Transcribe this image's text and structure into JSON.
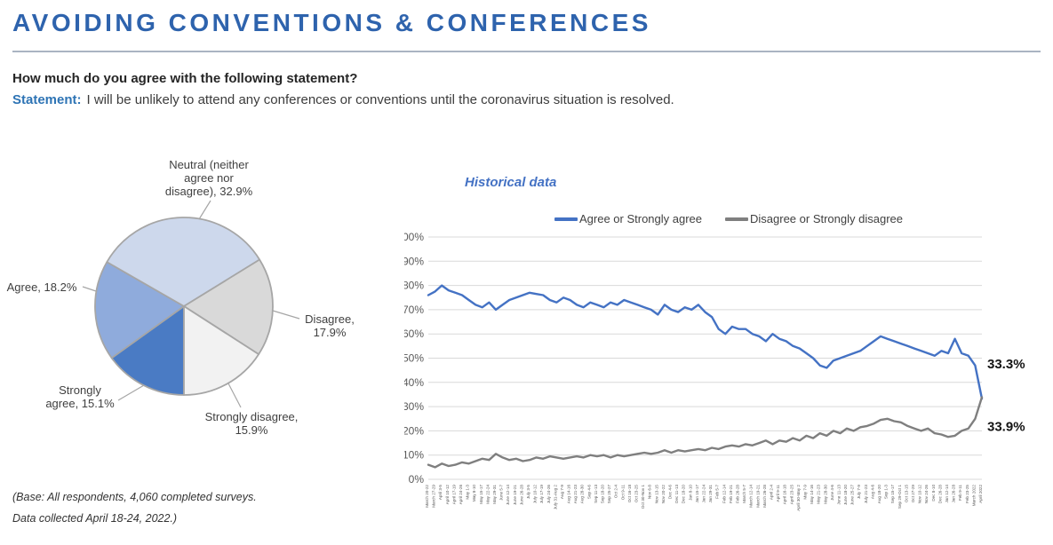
{
  "page": {
    "title": "AVOIDING CONVENTIONS & CONFERENCES",
    "question": "How much do you agree with the following statement?",
    "statement_label": "Statement:",
    "statement_text": "I will be unlikely to attend any conferences or conventions until the coronavirus situation is resolved.",
    "footnote_line1": "(Base: All respondents, 4,060 completed surveys.",
    "footnote_line2": "Data collected April 18-24, 2022.)"
  },
  "colors": {
    "title_blue": "#2e63ad",
    "statement_blue": "#2e74b5",
    "agree_line": "#4472c4",
    "disagree_line": "#7f7f7f",
    "grid_gray": "#d9d9d9",
    "axis_text": "#595959",
    "pie_stroke": "#a6a6a6"
  },
  "chart_data": [
    {
      "type": "pie",
      "title": "",
      "labels": [
        "Strongly agree",
        "Agree",
        "Neutral (neither agree nor disagree)",
        "Disagree",
        "Strongly disagree"
      ],
      "values": [
        15.1,
        18.2,
        32.9,
        17.9,
        15.9
      ],
      "colors": [
        "#4a7bc4",
        "#8fabdc",
        "#cdd8ec",
        "#d9d9d9",
        "#f2f2f2"
      ],
      "start_angle": 180,
      "callouts": [
        {
          "text": "Neutral (neither\nagree nor\ndisagree), 32.9%"
        },
        {
          "text": "Agree, 18.2%"
        },
        {
          "text": "Disagree,\n17.9%"
        },
        {
          "text": "Strongly\nagree, 15.1%"
        },
        {
          "text": "Strongly disagree,\n15.9%"
        }
      ]
    },
    {
      "type": "line",
      "title": "Historical data",
      "ylim": [
        0,
        100
      ],
      "yticks": [
        "0%",
        "10%",
        "20%",
        "30%",
        "40%",
        "50%",
        "60%",
        "70%",
        "80%",
        "90%",
        "100%"
      ],
      "grid": true,
      "legend_position": "top",
      "end_labels": [
        "33.3%",
        "33.9%"
      ],
      "categories": [
        "March 20-22",
        "March 27-29",
        "April 3-5",
        "April 10-12",
        "April 17-19",
        "April 24-26",
        "May 1-3",
        "May 8-10",
        "May 15-17",
        "May 22-24",
        "May 29-31",
        "June 5-7",
        "June 12-14",
        "June 19-21",
        "June 26-28",
        "July 3-5",
        "July 10-12",
        "July 17-19",
        "July 24-26",
        "July 31-Aug 2",
        "Aug 7-9",
        "Aug 14-16",
        "Aug 21-23",
        "Aug 28-30",
        "Sep 4-6",
        "Sep 11-13",
        "Sep 18-20",
        "Sep 25-27",
        "Oct 2-4",
        "Oct 9-11",
        "Oct 16-18",
        "Oct 23-25",
        "Oct 30-Nov 1",
        "Nov 6-8",
        "Nov 13-15",
        "Nov 20-22",
        "Dec 4-6",
        "Dec 11-13",
        "Dec 18-20",
        "Jan 8-10",
        "Jan 15-17",
        "Jan 22-24",
        "Jan 29-31",
        "Feb 5-7",
        "Feb 12-14",
        "Feb 19-21",
        "Feb 26-28",
        "March 5-7",
        "March 12-14",
        "March 19-21",
        "March 26-28",
        "April 2-4",
        "April 9-11",
        "April 16-18",
        "April 23-25",
        "April 30-May 2",
        "May 7-9",
        "May 14-16",
        "May 21-23",
        "May 28-30",
        "June 4-6",
        "June 11-13",
        "June 18-20",
        "June 25-27",
        "July 7-9",
        "July 21-23",
        "Aug 4-6",
        "Aug 18-20",
        "Sep 1-3",
        "Sep 15-17",
        "Sep 29-Oct 1",
        "Oct 13-15",
        "Oct 27-29",
        "Nov 10-12",
        "Nov 24-26",
        "Dec 8-10",
        "Dec 26-28",
        "Jan 12-14",
        "Jan 26-28",
        "Feb 9-11",
        "Feb 23-25",
        "March 2022",
        "April 2022"
      ],
      "series": [
        {
          "name": "Agree or Strongly agree",
          "color": "#4472c4",
          "values": [
            76,
            77.5,
            80,
            78,
            77,
            76,
            74,
            72,
            71,
            73,
            70,
            72,
            74,
            75,
            76,
            77,
            76.5,
            76,
            74,
            73,
            75,
            74,
            72,
            71,
            73,
            72,
            71,
            73,
            72,
            74,
            73,
            72,
            71,
            70,
            68,
            72,
            70,
            69,
            71,
            70,
            72,
            69,
            67,
            62,
            60,
            63,
            62,
            62,
            60,
            59,
            57,
            60,
            58,
            57,
            55,
            54,
            52,
            50,
            47,
            46,
            49,
            50,
            51,
            52,
            53,
            55,
            57,
            59,
            58,
            57,
            56,
            55,
            54,
            53,
            52,
            51,
            53,
            52,
            58,
            52,
            51,
            47,
            33.3
          ]
        },
        {
          "name": "Disagree or Strongly disagree",
          "color": "#7f7f7f",
          "values": [
            6,
            5,
            6.5,
            5.5,
            6,
            7,
            6.5,
            7.5,
            8.5,
            8,
            10.5,
            9,
            8,
            8.5,
            7.5,
            8,
            9,
            8.5,
            9.5,
            9,
            8.5,
            9,
            9.5,
            9,
            10,
            9.5,
            10,
            9,
            10,
            9.5,
            10,
            10.5,
            11,
            10.5,
            11,
            12,
            11,
            12,
            11.5,
            12,
            12.5,
            12,
            13,
            12.5,
            13.5,
            14,
            13.5,
            14.5,
            14,
            15,
            16,
            14.5,
            16,
            15.5,
            17,
            16,
            18,
            17,
            19,
            18,
            20,
            19,
            21,
            20,
            21.5,
            22,
            23,
            24.5,
            25,
            24,
            23.5,
            22,
            21,
            20,
            21,
            19,
            18.5,
            17.5,
            18,
            20,
            21,
            25,
            33.9
          ]
        }
      ]
    }
  ]
}
